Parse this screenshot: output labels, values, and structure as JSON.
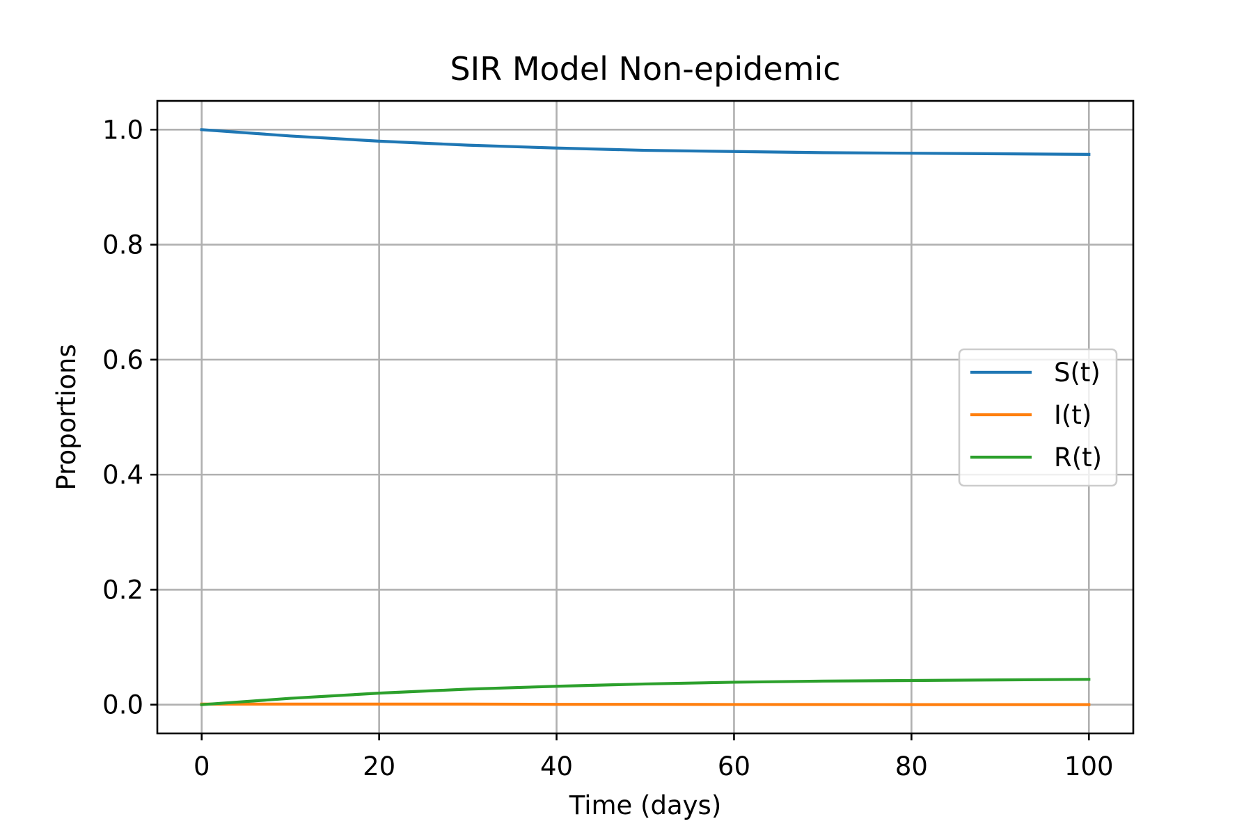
{
  "chart_data": {
    "type": "line",
    "title": "SIR Model Non-epidemic",
    "xlabel": "Time (days)",
    "ylabel": "Proportions",
    "xlim": [
      -5,
      105
    ],
    "ylim": [
      -0.05,
      1.05
    ],
    "xticks": [
      0,
      20,
      40,
      60,
      80,
      100
    ],
    "yticks": [
      0.0,
      0.2,
      0.4,
      0.6,
      0.8,
      1.0
    ],
    "xtick_labels": [
      "0",
      "20",
      "40",
      "60",
      "80",
      "100"
    ],
    "ytick_labels": [
      "0.0",
      "0.2",
      "0.4",
      "0.6",
      "0.8",
      "1.0"
    ],
    "grid": true,
    "legend_position": "center-right",
    "x": [
      0,
      10,
      20,
      30,
      40,
      50,
      60,
      70,
      80,
      90,
      100
    ],
    "series": [
      {
        "name": "S(t)",
        "color": "#1f77b4",
        "values": [
          1.0,
          0.989,
          0.98,
          0.973,
          0.968,
          0.964,
          0.962,
          0.96,
          0.959,
          0.958,
          0.957
        ]
      },
      {
        "name": "I(t)",
        "color": "#ff7f0e",
        "values": [
          0.001,
          0.001,
          0.001,
          0.001,
          0.0005,
          0.0005,
          0.0003,
          0.0002,
          0.0001,
          0.0001,
          0.0001
        ]
      },
      {
        "name": "R(t)",
        "color": "#2ca02c",
        "values": [
          0.0,
          0.011,
          0.02,
          0.027,
          0.032,
          0.036,
          0.039,
          0.041,
          0.042,
          0.043,
          0.044
        ]
      }
    ]
  }
}
